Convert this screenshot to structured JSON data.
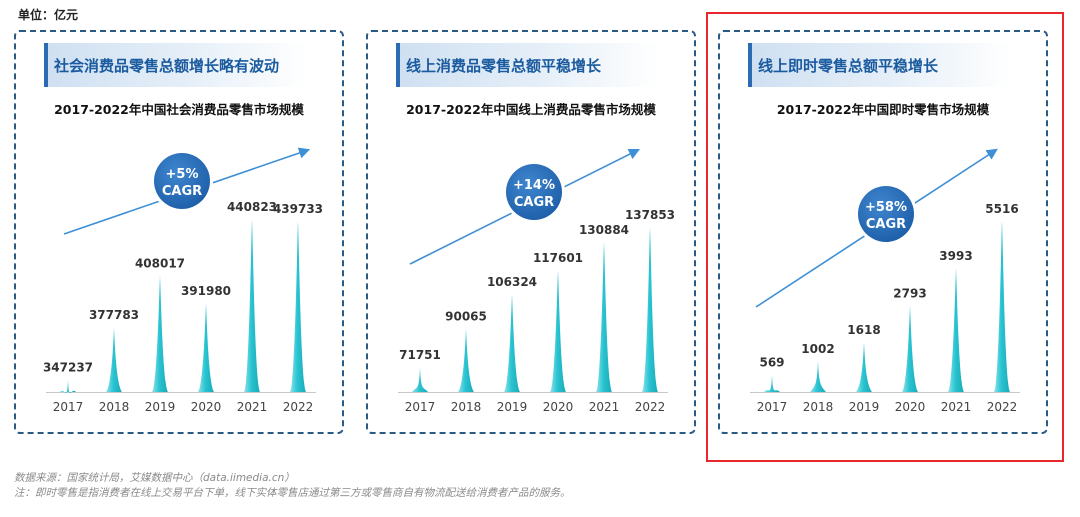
{
  "unit_label": "单位：亿元",
  "highlight_frame": true,
  "colors": {
    "bar": "#2ac4d2",
    "bar_light": "#8fe3ea",
    "arrow": "#3d8fd6",
    "badge": "#1d5ea8",
    "header_accent": "#2a6bb4",
    "header_text": "#1a5a9e",
    "highlight": "#e8262b",
    "panel_border": "#2a5a86"
  },
  "panels": [
    {
      "header": "社会消费品零售总额增长略有波动",
      "chart_title": "2017-2022年中国社会消费品零售市场规模",
      "cagr_value": "+5%",
      "cagr_label": "CAGR"
    },
    {
      "header": "线上消费品零售总额平稳增长",
      "chart_title": "2017-2022年中国线上消费品零售市场规模",
      "cagr_value": "+14%",
      "cagr_label": "CAGR"
    },
    {
      "header": "线上即时零售总额平稳增长",
      "chart_title": "2017-2022年中国即时零售市场规模",
      "cagr_value": "+58%",
      "cagr_label": "CAGR"
    }
  ],
  "chart_data": [
    {
      "type": "bar",
      "title": "2017-2022年中国社会消费品零售市场规模",
      "categories": [
        "2017",
        "2018",
        "2019",
        "2020",
        "2021",
        "2022"
      ],
      "values": [
        347237,
        377783,
        408017,
        391980,
        440823,
        439733
      ],
      "value_labels": [
        "347237",
        "377783",
        "408017",
        "391980",
        "440823",
        "439733"
      ],
      "ylim": [
        340000,
        445000
      ],
      "ylabel": "亿元",
      "annotation": "+5% CAGR"
    },
    {
      "type": "bar",
      "title": "2017-2022年中国线上消费品零售市场规模",
      "categories": [
        "2017",
        "2018",
        "2019",
        "2020",
        "2021",
        "2022"
      ],
      "values": [
        71751,
        90065,
        106324,
        117601,
        130884,
        137853
      ],
      "value_labels": [
        "71751",
        "90065",
        "106324",
        "117601",
        "130884",
        "137853"
      ],
      "ylim": [
        60000,
        145000
      ],
      "ylabel": "亿元",
      "annotation": "+14% CAGR"
    },
    {
      "type": "bar",
      "title": "2017-2022年中国即时零售市场规模",
      "categories": [
        "2017",
        "2018",
        "2019",
        "2020",
        "2021",
        "2022"
      ],
      "values": [
        569,
        1002,
        1618,
        2793,
        3993,
        5516
      ],
      "value_labels": [
        "569",
        "1002",
        "1618",
        "2793",
        "3993",
        "5516"
      ],
      "ylim": [
        0,
        5800
      ],
      "ylabel": "亿元",
      "annotation": "+58% CAGR"
    }
  ],
  "footnotes": [
    "数据来源：国家统计局，艾媒数据中心（data.iimedia.cn）",
    "注：即时零售是指消费者在线上交易平台下单，线下实体零售店通过第三方或零售商自有物流配送给消费者产品的服务。"
  ]
}
